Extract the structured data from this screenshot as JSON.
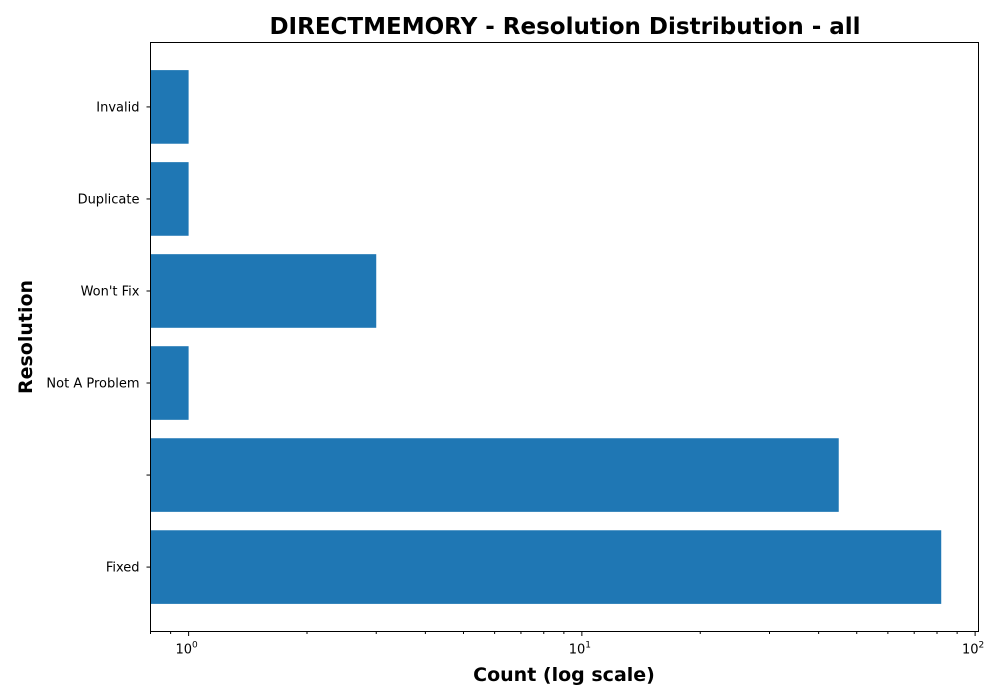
{
  "chart_data": {
    "type": "bar",
    "orientation": "horizontal",
    "title": "DIRECTMEMORY - Resolution Distribution - all",
    "xlabel": "Count (log scale)",
    "ylabel": "Resolution",
    "x_scale": "log",
    "xlim": [
      0.8,
      102
    ],
    "categories": [
      "Fixed",
      "",
      "Not A Problem",
      "Won't Fix",
      "Duplicate",
      "Invalid"
    ],
    "values": [
      82,
      45,
      1,
      3,
      1,
      1
    ],
    "x_major_ticks": [
      {
        "value": 1,
        "base": "10",
        "exp": "0"
      },
      {
        "value": 10,
        "base": "10",
        "exp": "1"
      },
      {
        "value": 100,
        "base": "10",
        "exp": "2"
      }
    ],
    "bar_color": "#1f77b4",
    "grid": false
  }
}
